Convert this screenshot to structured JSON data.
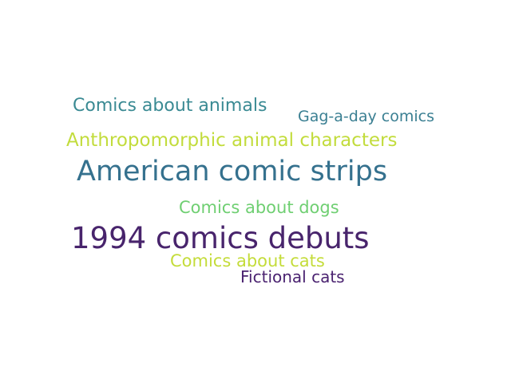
{
  "words": [
    {
      "text": "Comics about animals",
      "color": "#3a8a93"
    },
    {
      "text": "Gag-a-day comics",
      "color": "#3a7f92"
    },
    {
      "text": "Anthropomorphic animal characters",
      "color": "#c2dc3c"
    },
    {
      "text": "American comic strips",
      "color": "#35718e"
    },
    {
      "text": "Comics about dogs",
      "color": "#6fcf72"
    },
    {
      "text": "1994 comics debuts",
      "color": "#48246c"
    },
    {
      "text": "Comics about cats",
      "color": "#c4dc3a"
    },
    {
      "text": "Fictional cats",
      "color": "#4a2270"
    }
  ]
}
